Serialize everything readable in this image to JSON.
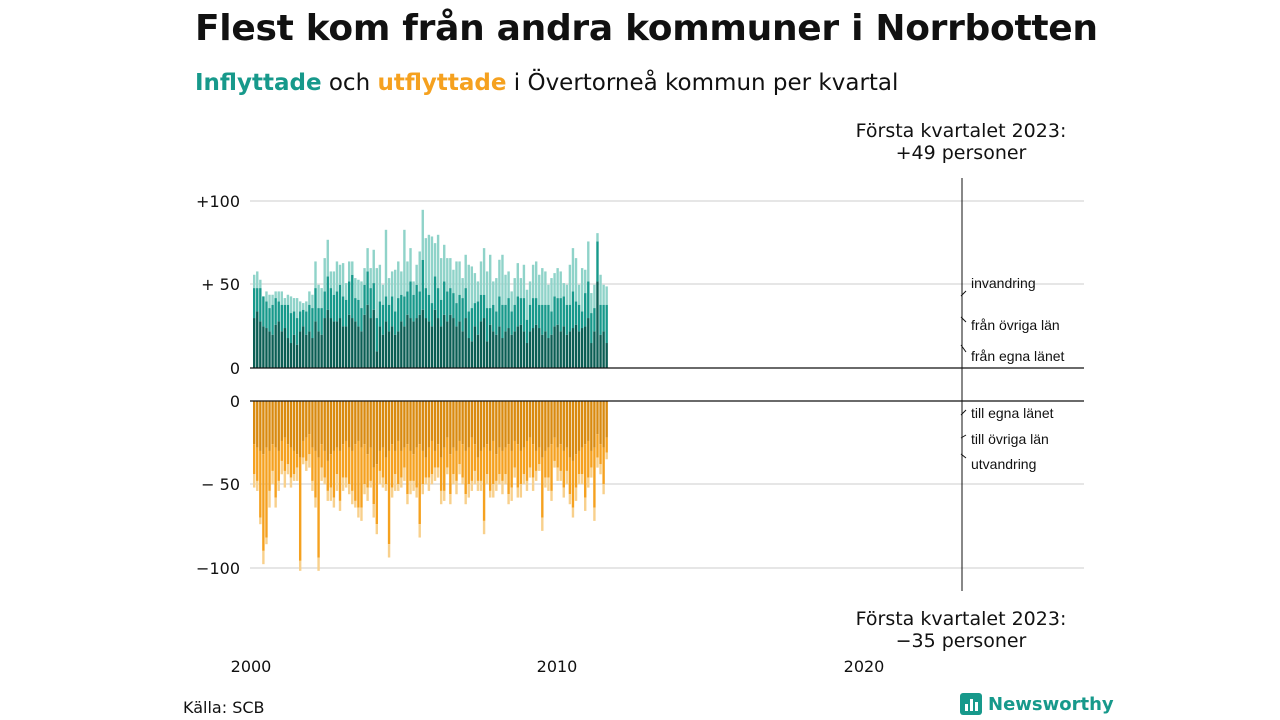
{
  "title": "Flest kom från andra kommuner i Norrbotten",
  "subtitle": {
    "in_word": "Inflyttade",
    "and_word": " och ",
    "out_word": "utflyttade",
    "rest": " i Övertorneå kommun per kvartal"
  },
  "annotations": {
    "top_line1": "Första kvartalet 2023:",
    "top_line2": "+49 personer",
    "bottom_line1": "Första kvartalet 2023:",
    "bottom_line2": "−35 personer"
  },
  "source": "Källa: SCB",
  "brand": "Newsworthy",
  "colors": {
    "in_egna": "#0b5e54",
    "in_ovriga": "#17998b",
    "in_invandring": "#8fd3c9",
    "out_egna": "#d98a0f",
    "out_ovriga": "#f5a11f",
    "out_utvandring": "#f8d08c",
    "brand": "#17998b"
  },
  "chart_data": {
    "type": "bar",
    "stacked": true,
    "x_start": "2000 Q1",
    "x_end": "2023 Q1",
    "x_ticks": [
      "2000",
      "2010",
      "2020"
    ],
    "y_ticks_top": [
      "+100",
      "+ 50",
      "0"
    ],
    "y_ticks_bottom": [
      "0",
      "− 50",
      "−100"
    ],
    "ylim_in": [
      0,
      100
    ],
    "ylim_out": [
      -100,
      0
    ],
    "grid": true,
    "series_in": [
      {
        "name": "från egna länet",
        "values": [
          30,
          34,
          28,
          25,
          24,
          22,
          20,
          26,
          28,
          22,
          24,
          18,
          15,
          20,
          14,
          22,
          25,
          20,
          22,
          18,
          28,
          22,
          20,
          30,
          35,
          30,
          28,
          28,
          30,
          25,
          25,
          32,
          30,
          28,
          25,
          22,
          32,
          38,
          30,
          35,
          10,
          25,
          20,
          28,
          22,
          25,
          20,
          22,
          28,
          25,
          32,
          30,
          28,
          30,
          32,
          35,
          30,
          28,
          25,
          35,
          30,
          25,
          32,
          28,
          32,
          30,
          25,
          28,
          22,
          30,
          18,
          16,
          25,
          20,
          28,
          30,
          16,
          26,
          22,
          20,
          25,
          18,
          22,
          24,
          20,
          22,
          25,
          26,
          22,
          15,
          22,
          24,
          26,
          24,
          20,
          22,
          18,
          20,
          25,
          26,
          22,
          25,
          20,
          22,
          24,
          26,
          22,
          24,
          25,
          30,
          15,
          22,
          52,
          20,
          22,
          15
        ]
      },
      {
        "name": "från övriga län",
        "values": [
          18,
          14,
          20,
          18,
          16,
          14,
          18,
          16,
          12,
          16,
          14,
          20,
          18,
          14,
          16,
          12,
          10,
          14,
          16,
          18,
          20,
          14,
          16,
          16,
          20,
          18,
          16,
          18,
          20,
          18,
          16,
          20,
          26,
          14,
          16,
          14,
          18,
          20,
          18,
          16,
          20,
          15,
          18,
          15,
          16,
          18,
          14,
          20,
          16,
          18,
          14,
          22,
          16,
          20,
          14,
          30,
          18,
          16,
          14,
          20,
          18,
          16,
          20,
          18,
          16,
          15,
          14,
          16,
          20,
          18,
          16,
          20,
          14,
          20,
          16,
          14,
          20,
          10,
          16,
          14,
          18,
          20,
          16,
          18,
          14,
          16,
          18,
          16,
          20,
          14,
          16,
          18,
          16,
          14,
          18,
          16,
          20,
          14,
          18,
          16,
          20,
          18,
          18,
          16,
          22,
          14,
          16,
          10,
          20,
          22,
          18,
          14,
          24,
          18,
          16,
          23
        ]
      },
      {
        "name": "invandring",
        "values": [
          8,
          10,
          5,
          0,
          6,
          8,
          6,
          4,
          6,
          8,
          4,
          6,
          10,
          8,
          12,
          6,
          4,
          6,
          8,
          8,
          16,
          14,
          12,
          20,
          22,
          10,
          14,
          18,
          12,
          20,
          10,
          12,
          8,
          12,
          12,
          16,
          10,
          14,
          12,
          20,
          30,
          22,
          12,
          40,
          16,
          15,
          25,
          22,
          14,
          40,
          18,
          20,
          8,
          12,
          24,
          30,
          30,
          36,
          40,
          20,
          32,
          25,
          22,
          20,
          18,
          14,
          25,
          20,
          12,
          20,
          28,
          25,
          18,
          12,
          20,
          28,
          22,
          32,
          14,
          20,
          22,
          30,
          18,
          16,
          12,
          16,
          20,
          12,
          20,
          18,
          14,
          20,
          22,
          18,
          22,
          20,
          12,
          20,
          14,
          18,
          16,
          8,
          12,
          24,
          26,
          26,
          12,
          26,
          14,
          24,
          12,
          14,
          5,
          18,
          12,
          11
        ]
      }
    ],
    "series_out": [
      {
        "name": "till egna länet",
        "values": [
          -26,
          -28,
          -30,
          -32,
          -28,
          -30,
          -26,
          -28,
          -30,
          -24,
          -22,
          -26,
          -28,
          -30,
          -32,
          -34,
          -24,
          -22,
          -20,
          -28,
          -30,
          -34,
          -26,
          -30,
          -36,
          -32,
          -30,
          -28,
          -30,
          -26,
          -24,
          -28,
          -30,
          -26,
          -24,
          -28,
          -26,
          -32,
          -28,
          -40,
          -38,
          -30,
          -28,
          -34,
          -30,
          -26,
          -30,
          -24,
          -30,
          -28,
          -26,
          -30,
          -32,
          -28,
          -26,
          -30,
          -34,
          -28,
          -24,
          -30,
          -26,
          -34,
          -28,
          -22,
          -32,
          -28,
          -30,
          -24,
          -26,
          -30,
          -28,
          -22,
          -26,
          -34,
          -30,
          -28,
          -26,
          -30,
          -24,
          -32,
          -28,
          -30,
          -28,
          -26,
          -30,
          -24,
          -26,
          -30,
          -28,
          -24,
          -22,
          -26,
          -30,
          -28,
          -34,
          -30,
          -28,
          -26,
          -22,
          -28,
          -26,
          -30,
          -28,
          -34,
          -36,
          -32,
          -30,
          -28,
          -26,
          -24,
          -30,
          -28,
          -20,
          -26,
          -28,
          -22
        ]
      },
      {
        "name": "till övriga län",
        "values": [
          -18,
          -20,
          -40,
          -58,
          -54,
          -24,
          -16,
          -30,
          -18,
          -12,
          -20,
          -12,
          -18,
          -14,
          -8,
          -62,
          -10,
          -14,
          -12,
          -20,
          -28,
          -60,
          -14,
          -16,
          -18,
          -20,
          -28,
          -16,
          -30,
          -20,
          -22,
          -22,
          -24,
          -34,
          -40,
          -36,
          -24,
          -20,
          -20,
          -22,
          -36,
          -12,
          -18,
          -16,
          -56,
          -26,
          -14,
          -26,
          -16,
          -12,
          -30,
          -18,
          -16,
          -24,
          -48,
          -20,
          -12,
          -18,
          -20,
          -10,
          -14,
          -20,
          -26,
          -18,
          -24,
          -16,
          -18,
          -14,
          -20,
          -26,
          -22,
          -26,
          -16,
          -14,
          -18,
          -44,
          -18,
          -24,
          -26,
          -16,
          -16,
          -18,
          -16,
          -30,
          -22,
          -16,
          -26,
          -20,
          -16,
          -24,
          -18,
          -20,
          -12,
          -10,
          -36,
          -16,
          -18,
          -28,
          -14,
          -12,
          -16,
          -22,
          -14,
          -22,
          -28,
          -20,
          -14,
          -16,
          -32,
          -22,
          -10,
          -36,
          -14,
          -12,
          -22,
          -9
        ]
      },
      {
        "name": "utvandring",
        "values": [
          -8,
          -6,
          -4,
          -8,
          -4,
          -10,
          -8,
          -6,
          -6,
          -8,
          -10,
          -6,
          -6,
          -4,
          -8,
          -6,
          -4,
          -6,
          -8,
          -6,
          -6,
          -8,
          -8,
          -4,
          -6,
          -8,
          -6,
          -10,
          -6,
          -8,
          -6,
          -6,
          -8,
          -4,
          -6,
          -8,
          -6,
          -8,
          -4,
          -8,
          -6,
          -8,
          -6,
          -4,
          -8,
          -6,
          -10,
          -4,
          -6,
          -8,
          -6,
          -8,
          -6,
          -6,
          -8,
          -6,
          -4,
          -8,
          -6,
          -8,
          -6,
          -8,
          -6,
          -4,
          -6,
          -6,
          -8,
          -6,
          -4,
          -6,
          -8,
          -6,
          -8,
          -6,
          -6,
          -8,
          -6,
          -4,
          -8,
          -6,
          -6,
          -8,
          -6,
          -6,
          -8,
          -6,
          -6,
          -8,
          -6,
          -6,
          -6,
          -8,
          -6,
          -4,
          -8,
          -6,
          -8,
          -6,
          -4,
          -8,
          -6,
          -6,
          -8,
          -6,
          -6,
          -8,
          -6,
          -6,
          -8,
          -6,
          -6,
          -8,
          -6,
          -6,
          -6,
          -4
        ]
      }
    ],
    "segment_labels_in": [
      "invandring",
      "från övriga län",
      "från egna länet"
    ],
    "segment_labels_out": [
      "till egna länet",
      "till övriga län",
      "utvandring"
    ]
  }
}
